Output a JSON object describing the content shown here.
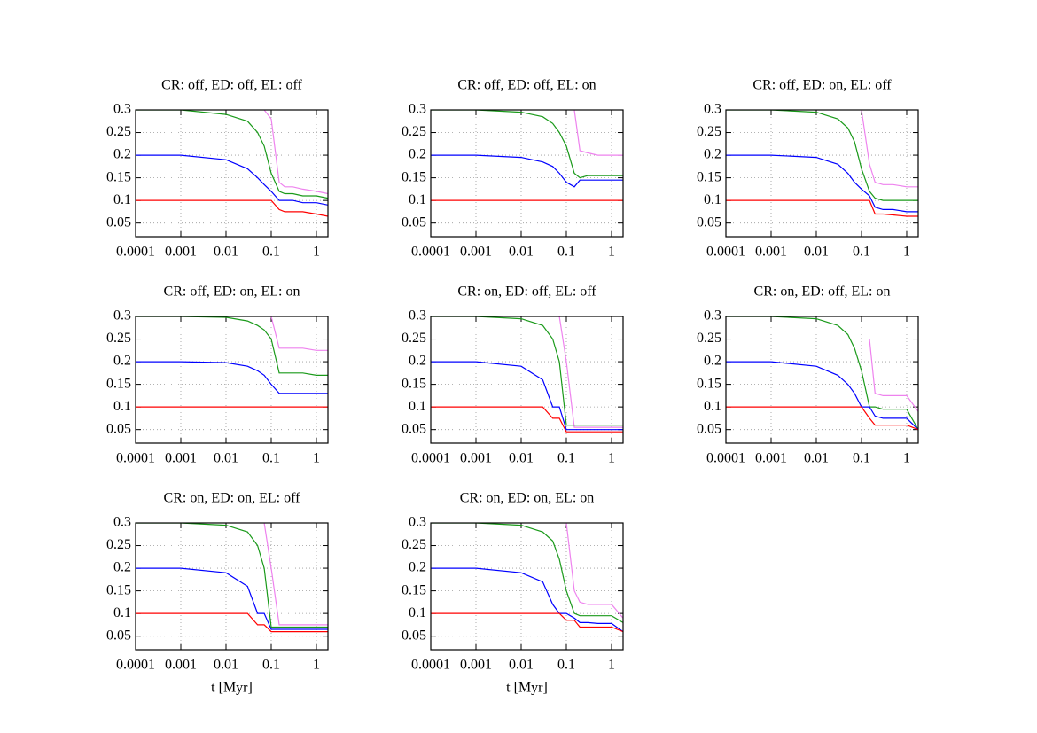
{
  "chart_data": [
    {
      "type": "line",
      "title": "CR: off, ED: off, EL: off",
      "xscale": "log",
      "grid": true,
      "x": [
        0.0001,
        0.001,
        0.01,
        0.03,
        0.05,
        0.07,
        0.1,
        0.15,
        0.2,
        0.3,
        0.5,
        1,
        1.8
      ],
      "xlim": [
        0.0001,
        1.8
      ],
      "xticks": [
        0.0001,
        0.001,
        0.01,
        0.1,
        1
      ],
      "ylim": [
        0.02,
        0.3
      ],
      "yticks": [
        0.05,
        0.1,
        0.15,
        0.2,
        0.25,
        0.3
      ],
      "series": [
        {
          "color": "#ee82ee",
          "values": [
            null,
            null,
            null,
            null,
            null,
            0.3,
            0.28,
            0.14,
            0.13,
            0.13,
            0.125,
            0.12,
            0.115
          ]
        },
        {
          "color": "#1a9a1a",
          "values": [
            0.3,
            0.3,
            0.29,
            0.275,
            0.25,
            0.22,
            0.16,
            0.12,
            0.115,
            0.115,
            0.11,
            0.11,
            0.105
          ]
        },
        {
          "color": "#0000ff",
          "values": [
            0.2,
            0.2,
            0.19,
            0.17,
            0.15,
            0.135,
            0.12,
            0.1,
            0.1,
            0.1,
            0.095,
            0.095,
            0.09
          ]
        },
        {
          "color": "#ff0000",
          "values": [
            0.1,
            0.1,
            0.1,
            0.1,
            0.1,
            0.1,
            0.1,
            0.08,
            0.075,
            0.075,
            0.075,
            0.07,
            0.065
          ]
        }
      ]
    },
    {
      "type": "line",
      "title": "CR: off, ED: off, EL: on",
      "xscale": "log",
      "grid": true,
      "x": [
        0.0001,
        0.001,
        0.01,
        0.03,
        0.05,
        0.07,
        0.1,
        0.15,
        0.2,
        0.3,
        0.5,
        1,
        1.8
      ],
      "xlim": [
        0.0001,
        1.8
      ],
      "xticks": [
        0.0001,
        0.001,
        0.01,
        0.1,
        1
      ],
      "ylim": [
        0.02,
        0.3
      ],
      "yticks": [
        0.05,
        0.1,
        0.15,
        0.2,
        0.25,
        0.3
      ],
      "series": [
        {
          "color": "#ee82ee",
          "values": [
            null,
            null,
            null,
            null,
            null,
            null,
            null,
            0.3,
            0.21,
            0.205,
            0.2,
            0.2,
            0.2
          ]
        },
        {
          "color": "#1a9a1a",
          "values": [
            0.3,
            0.3,
            0.295,
            0.285,
            0.27,
            0.25,
            0.22,
            0.16,
            0.15,
            0.155,
            0.155,
            0.155,
            0.155
          ]
        },
        {
          "color": "#0000ff",
          "values": [
            0.2,
            0.2,
            0.195,
            0.185,
            0.175,
            0.16,
            0.14,
            0.13,
            0.145,
            0.145,
            0.145,
            0.145,
            0.145
          ]
        },
        {
          "color": "#ff0000",
          "values": [
            0.1,
            0.1,
            0.1,
            0.1,
            0.1,
            0.1,
            0.1,
            0.1,
            0.1,
            0.1,
            0.1,
            0.1,
            0.1
          ]
        }
      ]
    },
    {
      "type": "line",
      "title": "CR: off, ED: on, EL: off",
      "xscale": "log",
      "grid": true,
      "x": [
        0.0001,
        0.001,
        0.01,
        0.03,
        0.05,
        0.07,
        0.1,
        0.15,
        0.2,
        0.3,
        0.5,
        1,
        1.8
      ],
      "xlim": [
        0.0001,
        1.8
      ],
      "xticks": [
        0.0001,
        0.001,
        0.01,
        0.1,
        1
      ],
      "ylim": [
        0.02,
        0.3
      ],
      "yticks": [
        0.05,
        0.1,
        0.15,
        0.2,
        0.25,
        0.3
      ],
      "series": [
        {
          "color": "#ee82ee",
          "values": [
            null,
            null,
            null,
            null,
            null,
            null,
            0.3,
            0.18,
            0.14,
            0.135,
            0.135,
            0.13,
            0.13
          ]
        },
        {
          "color": "#1a9a1a",
          "values": [
            0.3,
            0.3,
            0.295,
            0.28,
            0.26,
            0.23,
            0.17,
            0.12,
            0.105,
            0.1,
            0.1,
            0.1,
            0.1
          ]
        },
        {
          "color": "#0000ff",
          "values": [
            0.2,
            0.2,
            0.195,
            0.18,
            0.16,
            0.14,
            0.125,
            0.11,
            0.085,
            0.08,
            0.08,
            0.075,
            0.075
          ]
        },
        {
          "color": "#ff0000",
          "values": [
            0.1,
            0.1,
            0.1,
            0.1,
            0.1,
            0.1,
            0.1,
            0.1,
            0.07,
            0.07,
            0.068,
            0.065,
            0.065
          ]
        }
      ]
    },
    {
      "type": "line",
      "title": "CR: off, ED: on, EL: on",
      "xscale": "log",
      "grid": true,
      "x": [
        0.0001,
        0.001,
        0.01,
        0.03,
        0.05,
        0.07,
        0.1,
        0.15,
        0.2,
        0.3,
        0.5,
        1,
        1.8
      ],
      "xlim": [
        0.0001,
        1.8
      ],
      "xticks": [
        0.0001,
        0.001,
        0.01,
        0.1,
        1
      ],
      "ylim": [
        0.02,
        0.3
      ],
      "yticks": [
        0.05,
        0.1,
        0.15,
        0.2,
        0.25,
        0.3
      ],
      "series": [
        {
          "color": "#ee82ee",
          "values": [
            null,
            null,
            null,
            null,
            null,
            null,
            0.3,
            0.23,
            0.23,
            0.23,
            0.23,
            0.225,
            0.225
          ]
        },
        {
          "color": "#1a9a1a",
          "values": [
            0.3,
            0.3,
            0.298,
            0.29,
            0.28,
            0.27,
            0.25,
            0.175,
            0.175,
            0.175,
            0.175,
            0.17,
            0.17
          ]
        },
        {
          "color": "#0000ff",
          "values": [
            0.2,
            0.2,
            0.198,
            0.19,
            0.18,
            0.17,
            0.15,
            0.13,
            0.13,
            0.13,
            0.13,
            0.13,
            0.13
          ]
        },
        {
          "color": "#ff0000",
          "values": [
            0.1,
            0.1,
            0.1,
            0.1,
            0.1,
            0.1,
            0.1,
            0.1,
            0.1,
            0.1,
            0.1,
            0.1,
            0.1
          ]
        }
      ]
    },
    {
      "type": "line",
      "title": "CR: on, ED: off, EL: off",
      "xscale": "log",
      "grid": true,
      "x": [
        0.0001,
        0.001,
        0.01,
        0.03,
        0.05,
        0.07,
        0.1,
        0.15,
        0.2,
        0.3,
        0.5,
        1,
        1.8
      ],
      "xlim": [
        0.0001,
        1.8
      ],
      "xticks": [
        0.0001,
        0.001,
        0.01,
        0.1,
        1
      ],
      "ylim": [
        0.02,
        0.3
      ],
      "yticks": [
        0.05,
        0.1,
        0.15,
        0.2,
        0.25,
        0.3
      ],
      "series": [
        {
          "color": "#ee82ee",
          "values": [
            null,
            null,
            null,
            null,
            null,
            0.3,
            0.2,
            0.055,
            0.055,
            0.055,
            0.055,
            0.055,
            0.055
          ]
        },
        {
          "color": "#1a9a1a",
          "values": [
            0.3,
            0.3,
            0.295,
            0.28,
            0.25,
            0.2,
            0.06,
            0.06,
            0.06,
            0.06,
            0.06,
            0.06,
            0.06
          ]
        },
        {
          "color": "#0000ff",
          "values": [
            0.2,
            0.2,
            0.19,
            0.16,
            0.1,
            0.1,
            0.05,
            0.05,
            0.05,
            0.05,
            0.05,
            0.05,
            0.05
          ]
        },
        {
          "color": "#ff0000",
          "values": [
            0.1,
            0.1,
            0.1,
            0.1,
            0.075,
            0.075,
            0.045,
            0.045,
            0.045,
            0.045,
            0.045,
            0.045,
            0.045
          ]
        }
      ]
    },
    {
      "type": "line",
      "title": "CR: on, ED: off, EL: on",
      "xscale": "log",
      "grid": true,
      "x": [
        0.0001,
        0.001,
        0.01,
        0.03,
        0.05,
        0.07,
        0.1,
        0.15,
        0.2,
        0.3,
        0.5,
        1,
        1.8
      ],
      "xlim": [
        0.0001,
        1.8
      ],
      "xticks": [
        0.0001,
        0.001,
        0.01,
        0.1,
        1
      ],
      "ylim": [
        0.02,
        0.3
      ],
      "yticks": [
        0.05,
        0.1,
        0.15,
        0.2,
        0.25,
        0.3
      ],
      "series": [
        {
          "color": "#ee82ee",
          "values": [
            null,
            null,
            null,
            null,
            null,
            null,
            null,
            0.25,
            0.13,
            0.125,
            0.125,
            0.125,
            0.09
          ]
        },
        {
          "color": "#1a9a1a",
          "values": [
            0.3,
            0.3,
            0.295,
            0.28,
            0.26,
            0.23,
            0.18,
            0.1,
            0.1,
            0.095,
            0.095,
            0.095,
            0.05
          ]
        },
        {
          "color": "#0000ff",
          "values": [
            0.2,
            0.2,
            0.19,
            0.17,
            0.15,
            0.13,
            0.1,
            0.1,
            0.08,
            0.075,
            0.075,
            0.075,
            0.05
          ]
        },
        {
          "color": "#ff0000",
          "values": [
            0.1,
            0.1,
            0.1,
            0.1,
            0.1,
            0.1,
            0.1,
            0.075,
            0.06,
            0.06,
            0.06,
            0.06,
            0.05
          ]
        }
      ]
    },
    {
      "type": "line",
      "title": "CR: on, ED: on, EL: off",
      "xlabel": "t [Myr]",
      "xscale": "log",
      "grid": true,
      "x": [
        0.0001,
        0.001,
        0.01,
        0.03,
        0.05,
        0.07,
        0.1,
        0.15,
        0.2,
        0.3,
        0.5,
        1,
        1.8
      ],
      "xlim": [
        0.0001,
        1.8
      ],
      "xticks": [
        0.0001,
        0.001,
        0.01,
        0.1,
        1
      ],
      "ylim": [
        0.02,
        0.3
      ],
      "yticks": [
        0.05,
        0.1,
        0.15,
        0.2,
        0.25,
        0.3
      ],
      "series": [
        {
          "color": "#ee82ee",
          "values": [
            null,
            null,
            null,
            null,
            null,
            0.3,
            0.2,
            0.075,
            0.075,
            0.075,
            0.075,
            0.075,
            0.075
          ]
        },
        {
          "color": "#1a9a1a",
          "values": [
            0.3,
            0.3,
            0.295,
            0.28,
            0.25,
            0.2,
            0.07,
            0.07,
            0.07,
            0.07,
            0.07,
            0.07,
            0.07
          ]
        },
        {
          "color": "#0000ff",
          "values": [
            0.2,
            0.2,
            0.19,
            0.16,
            0.1,
            0.1,
            0.065,
            0.065,
            0.065,
            0.065,
            0.065,
            0.065,
            0.065
          ]
        },
        {
          "color": "#ff0000",
          "values": [
            0.1,
            0.1,
            0.1,
            0.1,
            0.075,
            0.075,
            0.06,
            0.06,
            0.06,
            0.06,
            0.06,
            0.06,
            0.06
          ]
        }
      ]
    },
    {
      "type": "line",
      "title": "CR: on, ED: on, EL: on",
      "xlabel": "t [Myr]",
      "xscale": "log",
      "grid": true,
      "x": [
        0.0001,
        0.001,
        0.01,
        0.03,
        0.05,
        0.07,
        0.1,
        0.15,
        0.2,
        0.3,
        0.5,
        1,
        1.8
      ],
      "xlim": [
        0.0001,
        1.8
      ],
      "xticks": [
        0.0001,
        0.001,
        0.01,
        0.1,
        1
      ],
      "ylim": [
        0.02,
        0.3
      ],
      "yticks": [
        0.05,
        0.1,
        0.15,
        0.2,
        0.25,
        0.3
      ],
      "series": [
        {
          "color": "#ee82ee",
          "values": [
            null,
            null,
            null,
            null,
            null,
            null,
            0.3,
            0.15,
            0.125,
            0.12,
            0.12,
            0.12,
            0.09
          ]
        },
        {
          "color": "#1a9a1a",
          "values": [
            0.3,
            0.3,
            0.295,
            0.28,
            0.26,
            0.22,
            0.15,
            0.1,
            0.095,
            0.095,
            0.095,
            0.095,
            0.08
          ]
        },
        {
          "color": "#0000ff",
          "values": [
            0.2,
            0.2,
            0.19,
            0.17,
            0.12,
            0.1,
            0.1,
            0.09,
            0.08,
            0.08,
            0.078,
            0.078,
            0.06
          ]
        },
        {
          "color": "#ff0000",
          "values": [
            0.1,
            0.1,
            0.1,
            0.1,
            0.1,
            0.1,
            0.085,
            0.085,
            0.07,
            0.07,
            0.07,
            0.07,
            0.06
          ]
        }
      ]
    }
  ]
}
